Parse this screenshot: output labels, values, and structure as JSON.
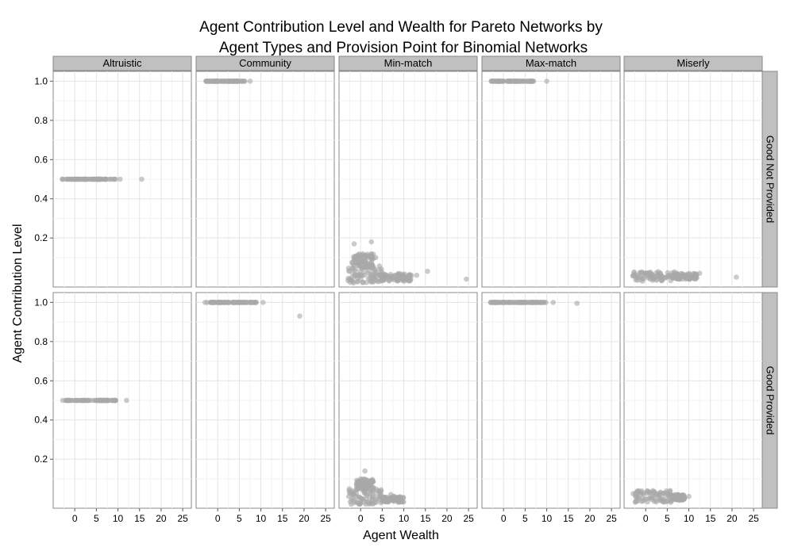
{
  "chart_data": {
    "type": "scatter",
    "title_line1": "Agent Contribution Level and Wealth for Pareto Networks by",
    "title_line2": "Agent Types and Provision Point for Binomial Networks",
    "xlabel": "Agent Wealth",
    "ylabel": "Agent Contribution Level",
    "xlim": [
      -5,
      27
    ],
    "ylim": [
      -0.05,
      1.05
    ],
    "x_ticks": [
      0,
      5,
      10,
      15,
      20,
      25
    ],
    "y_ticks": [
      0.2,
      0.4,
      0.6,
      0.8,
      1.0
    ],
    "y_tick_labels": [
      "0.2",
      "0.4",
      "0.6",
      "0.8",
      "1.0"
    ],
    "grid": true,
    "point_color": "#a9a9a9",
    "strip_fill": "#c0c0c0",
    "columns": [
      "Altruistic",
      "Community",
      "Min-match",
      "Max-match",
      "Miserly"
    ],
    "rows": [
      "Good Not Provided",
      "Good Provided"
    ],
    "panels": [
      {
        "row": 0,
        "col": 0,
        "clusters": [
          {
            "x": [
              -3,
              9.5
            ],
            "y": [
              0.5,
              0.5
            ]
          }
        ],
        "outliers": [
          [
            10.5,
            0.5
          ],
          [
            15.5,
            0.5
          ]
        ]
      },
      {
        "row": 0,
        "col": 1,
        "clusters": [
          {
            "x": [
              -3,
              6.5
            ],
            "y": [
              1.0,
              1.0
            ]
          }
        ],
        "outliers": [
          [
            7.5,
            1.0
          ]
        ]
      },
      {
        "row": 0,
        "col": 2,
        "clusters": [
          {
            "x": [
              -3,
              5
            ],
            "y": [
              -0.03,
              0.06
            ]
          },
          {
            "x": [
              -2,
              3
            ],
            "y": [
              0.05,
              0.12
            ]
          },
          {
            "x": [
              5,
              12
            ],
            "y": [
              -0.02,
              0.02
            ]
          }
        ],
        "outliers": [
          [
            -1.5,
            0.17
          ],
          [
            2.5,
            0.18
          ],
          [
            3.5,
            0.1
          ],
          [
            15.5,
            0.03
          ],
          [
            24.5,
            -0.01
          ],
          [
            13,
            0.01
          ]
        ]
      },
      {
        "row": 0,
        "col": 3,
        "clusters": [
          {
            "x": [
              -3,
              7
            ],
            "y": [
              1.0,
              1.0
            ]
          }
        ],
        "outliers": [
          [
            10,
            1.0
          ]
        ]
      },
      {
        "row": 0,
        "col": 4,
        "clusters": [
          {
            "x": [
              -3,
              7
            ],
            "y": [
              -0.02,
              0.03
            ]
          },
          {
            "x": [
              7,
              12
            ],
            "y": [
              -0.01,
              0.02
            ]
          }
        ],
        "outliers": [
          [
            21,
            0.0
          ],
          [
            12.5,
            0.02
          ]
        ]
      },
      {
        "row": 1,
        "col": 0,
        "clusters": [
          {
            "x": [
              -3,
              9.5
            ],
            "y": [
              0.5,
              0.5
            ]
          }
        ],
        "outliers": [
          [
            12,
            0.5
          ]
        ]
      },
      {
        "row": 1,
        "col": 1,
        "clusters": [
          {
            "x": [
              -3,
              9
            ],
            "y": [
              1.0,
              1.0
            ]
          }
        ],
        "outliers": [
          [
            10.5,
            1.0
          ],
          [
            19,
            0.93
          ]
        ]
      },
      {
        "row": 1,
        "col": 2,
        "clusters": [
          {
            "x": [
              -3,
              5
            ],
            "y": [
              -0.03,
              0.05
            ]
          },
          {
            "x": [
              -1,
              3
            ],
            "y": [
              0.04,
              0.1
            ]
          },
          {
            "x": [
              5,
              10
            ],
            "y": [
              -0.02,
              0.01
            ]
          }
        ],
        "outliers": [
          [
            1,
            0.14
          ],
          [
            0,
            0.1
          ],
          [
            7,
            0.02
          ],
          [
            9.5,
            -0.01
          ]
        ]
      },
      {
        "row": 1,
        "col": 3,
        "clusters": [
          {
            "x": [
              -3,
              10
            ],
            "y": [
              1.0,
              1.0
            ]
          }
        ],
        "outliers": [
          [
            11.5,
            1.0
          ],
          [
            17,
            0.995
          ]
        ]
      },
      {
        "row": 1,
        "col": 4,
        "clusters": [
          {
            "x": [
              -3,
              6
            ],
            "y": [
              -0.02,
              0.04
            ]
          },
          {
            "x": [
              6,
              9
            ],
            "y": [
              -0.01,
              0.02
            ]
          }
        ],
        "outliers": [
          [
            10,
            0.01
          ]
        ]
      }
    ]
  }
}
